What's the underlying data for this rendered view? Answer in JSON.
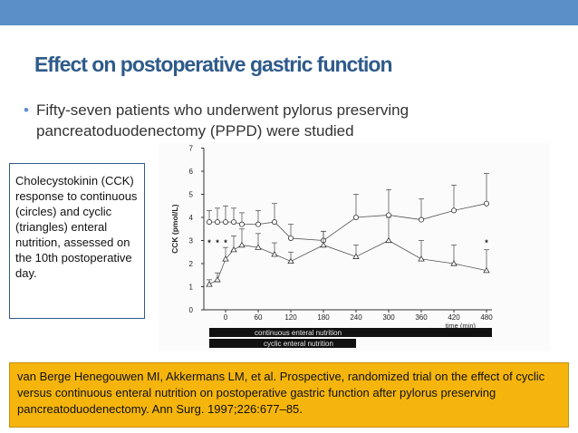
{
  "colors": {
    "band": "#5b8fc7",
    "title": "#2f5b8a",
    "ref_bg": "#f5b50c"
  },
  "slide": {
    "title": "Effect on postoperative gastric function",
    "bullet": "Fifty-seven patients who underwent pylorus preserving pancreatoduodenectomy (PPPD) were studied",
    "caption": "Cholecystokinin (CCK) response to continuous (circles) and cyclic (triangles) enteral nutrition, assessed on the 10th postoperative day.",
    "reference": "van Berge Henegouwen MI, Akkermans LM, et al. Prospective, randomized trial on the effect of cyclic versus continuous enteral nutrition on postoperative gastric function after pylorus preserving pancreatoduodenectomy. Ann Surg. 1997;226:677–85."
  },
  "chart_data": {
    "type": "line",
    "xlabel": "time (min)",
    "ylabel": "CCK (pmol/L)",
    "xlim": [
      -40,
      490
    ],
    "ylim": [
      0,
      7
    ],
    "xticks": [
      0,
      60,
      120,
      180,
      240,
      300,
      360,
      420,
      480
    ],
    "yticks": [
      0,
      1,
      2,
      3,
      4,
      5,
      6,
      7
    ],
    "grid": false,
    "series": [
      {
        "marker": "circle",
        "x": [
          -30,
          -15,
          0,
          15,
          30,
          60,
          90,
          120,
          180,
          240,
          300,
          360,
          420,
          480
        ],
        "y": [
          3.8,
          3.8,
          3.8,
          3.8,
          3.7,
          3.7,
          3.8,
          3.1,
          3.0,
          4.0,
          4.1,
          3.9,
          4.3,
          4.6
        ],
        "err": [
          0.5,
          0.6,
          0.7,
          0.6,
          0.5,
          0.6,
          0.8,
          0.6,
          0.4,
          1.0,
          1.1,
          0.9,
          1.1,
          1.3
        ]
      },
      {
        "marker": "triangle",
        "x": [
          -30,
          -15,
          0,
          15,
          30,
          60,
          90,
          120,
          180,
          240,
          300,
          360,
          420,
          480
        ],
        "y": [
          1.1,
          1.3,
          2.2,
          2.6,
          2.8,
          2.7,
          2.4,
          2.1,
          2.8,
          2.3,
          3.0,
          2.2,
          2.0,
          1.7
        ],
        "err": [
          0.2,
          0.3,
          0.5,
          0.6,
          0.7,
          0.6,
          0.5,
          0.4,
          0.6,
          0.5,
          1.0,
          0.8,
          0.8,
          0.9
        ]
      }
    ],
    "significance_marks": [
      {
        "x": -30,
        "y": 2.9,
        "label": "*"
      },
      {
        "x": -15,
        "y": 2.9,
        "label": "*"
      },
      {
        "x": 0,
        "y": 2.9,
        "label": "*"
      },
      {
        "x": 480,
        "y": 2.9,
        "label": "*"
      }
    ],
    "feeding_bars": [
      {
        "label": "continuous enteral nutrition",
        "x_start": -30,
        "x_end": 490
      },
      {
        "label": "cyclic enteral nutrition",
        "x_start": -30,
        "x_end": 240
      }
    ]
  }
}
